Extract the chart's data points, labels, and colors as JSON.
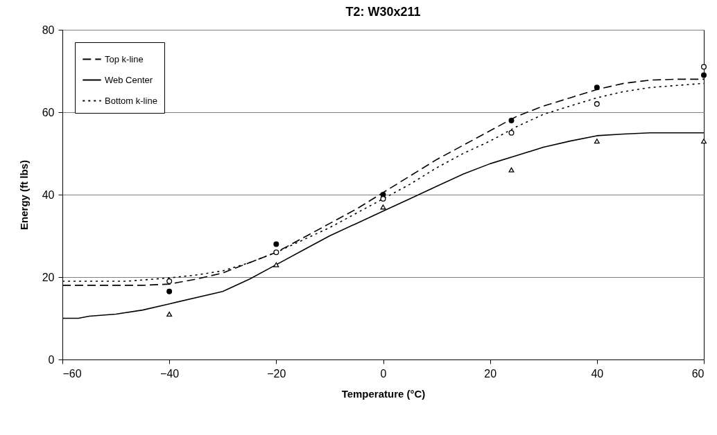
{
  "chart_data": {
    "type": "line",
    "title": "T2:  W30x211",
    "xlabel": "Temperature (°C)",
    "ylabel": "Energy (ft lbs)",
    "xlim": [
      -60,
      60
    ],
    "xticks": [
      -60,
      -40,
      -20,
      0,
      20,
      40,
      60
    ],
    "ylim": [
      0,
      80
    ],
    "yticks": [
      0,
      20,
      40,
      60,
      80
    ],
    "grid": "y",
    "legend": "top left",
    "series": [
      {
        "name": "Top k-line",
        "line_style": "dashed",
        "marker": "none",
        "color": "#000000",
        "x": [
          -60,
          -45,
          -40,
          -35,
          -30,
          -25,
          -20,
          -15,
          -10,
          -5,
          0,
          5,
          10,
          15,
          20,
          25,
          30,
          35,
          40,
          45,
          50,
          55,
          60
        ],
        "values": [
          18,
          18,
          18.3,
          19.5,
          21,
          23.5,
          26,
          29.5,
          33,
          36.5,
          40.5,
          44.5,
          48.5,
          52,
          55.5,
          59,
          61.5,
          63.5,
          65.5,
          67,
          67.8,
          68,
          68
        ]
      },
      {
        "name": "Web Center",
        "line_style": "solid",
        "marker": "none",
        "color": "#000000",
        "x": [
          -60,
          -57,
          -55,
          -50,
          -45,
          -40,
          -30,
          -25,
          -20,
          -15,
          -10,
          -5,
          0,
          5,
          10,
          15,
          20,
          25,
          30,
          35,
          40,
          45,
          50,
          60
        ],
        "values": [
          10,
          10,
          10.5,
          11,
          12,
          13.5,
          16.5,
          19.5,
          23,
          26.5,
          30,
          33,
          36,
          39,
          42,
          45,
          47.5,
          49.5,
          51.5,
          53,
          54.3,
          54.7,
          55,
          55
        ]
      },
      {
        "name": "Bottom k-line",
        "line_style": "dotted",
        "marker": "none",
        "color": "#000000",
        "x": [
          -60,
          -48,
          -40,
          -35,
          -30,
          -25,
          -20,
          -15,
          -10,
          -5,
          0,
          5,
          10,
          15,
          20,
          25,
          30,
          35,
          40,
          45,
          50,
          55,
          60
        ],
        "values": [
          19,
          19,
          19.8,
          20.5,
          21.5,
          23.5,
          26,
          29,
          32,
          35.5,
          39,
          42.5,
          46.5,
          50,
          53,
          56.5,
          59.5,
          61.5,
          63.5,
          65,
          66,
          66.5,
          67
        ]
      },
      {
        "type": "scatter",
        "marker": "circle",
        "color": "#000000",
        "x": [
          -40,
          -20,
          0,
          24,
          40,
          60
        ],
        "values": [
          16.5,
          28,
          40,
          58,
          66,
          69
        ]
      },
      {
        "type": "scatter",
        "marker": "circle",
        "color": "#ffffff",
        "x": [
          -40,
          -20,
          0,
          24,
          40,
          60
        ],
        "values": [
          19,
          26,
          39,
          55,
          62,
          71
        ]
      },
      {
        "type": "scatter",
        "marker": "triangle",
        "color": "#ffffff",
        "x": [
          -40,
          -20,
          0,
          24,
          40,
          60
        ],
        "values": [
          11,
          23,
          37,
          46,
          53,
          53
        ]
      }
    ]
  }
}
